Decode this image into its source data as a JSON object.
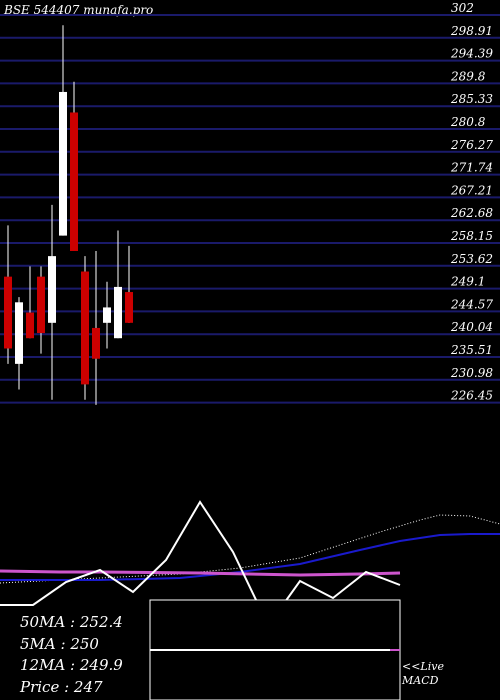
{
  "title": "BSE 544407 munafa.pro",
  "colors": {
    "bg": "#000000",
    "grid": "#1a1a6a",
    "up": "#ffffff",
    "down": "#cc0000",
    "text": "#ffffff"
  },
  "chart_data": {
    "type": "candlestick",
    "title": "BSE 544407 munafa.pro",
    "y_ticks": [
      "302",
      "298.91",
      "294.39",
      "289.8",
      "285.33",
      "280.8",
      "276.27",
      "271.74",
      "267.21",
      "262.68",
      "258.15",
      "253.62",
      "249.1",
      "244.57",
      "240.04",
      "235.51",
      "230.98",
      "226.45"
    ],
    "ylim": [
      226.45,
      302
    ],
    "candles": [
      {
        "open": 251,
        "high": 261,
        "low": 234,
        "close": 237
      },
      {
        "open": 234,
        "high": 247,
        "low": 229,
        "close": 246
      },
      {
        "open": 244,
        "high": 253,
        "low": 239,
        "close": 239
      },
      {
        "open": 251,
        "high": 253,
        "low": 236,
        "close": 240
      },
      {
        "open": 242,
        "high": 265,
        "low": 227,
        "close": 255
      },
      {
        "open": 259,
        "high": 300,
        "low": 259,
        "close": 287
      },
      {
        "open": 283,
        "high": 289,
        "low": 256,
        "close": 256
      },
      {
        "open": 252,
        "high": 255,
        "low": 227,
        "close": 230
      },
      {
        "open": 241,
        "high": 256,
        "low": 226,
        "close": 235
      },
      {
        "open": 242,
        "high": 250,
        "low": 237,
        "close": 245
      },
      {
        "open": 239,
        "high": 260,
        "low": 239,
        "close": 249
      },
      {
        "open": 248,
        "high": 257,
        "low": 242,
        "close": 242
      }
    ],
    "moving_averages": {
      "ma50": 252.4,
      "ma5": 250,
      "ma12": 249.9,
      "price": 247
    },
    "macd_label": "MACD"
  },
  "ma_panel": {
    "ma50": "50MA : 252.4",
    "ma5": "5MA : 250",
    "ma12": "12MA : 249.9",
    "price": "Price   : 247"
  },
  "live_label": "<<Live",
  "macd_label": "MACD"
}
